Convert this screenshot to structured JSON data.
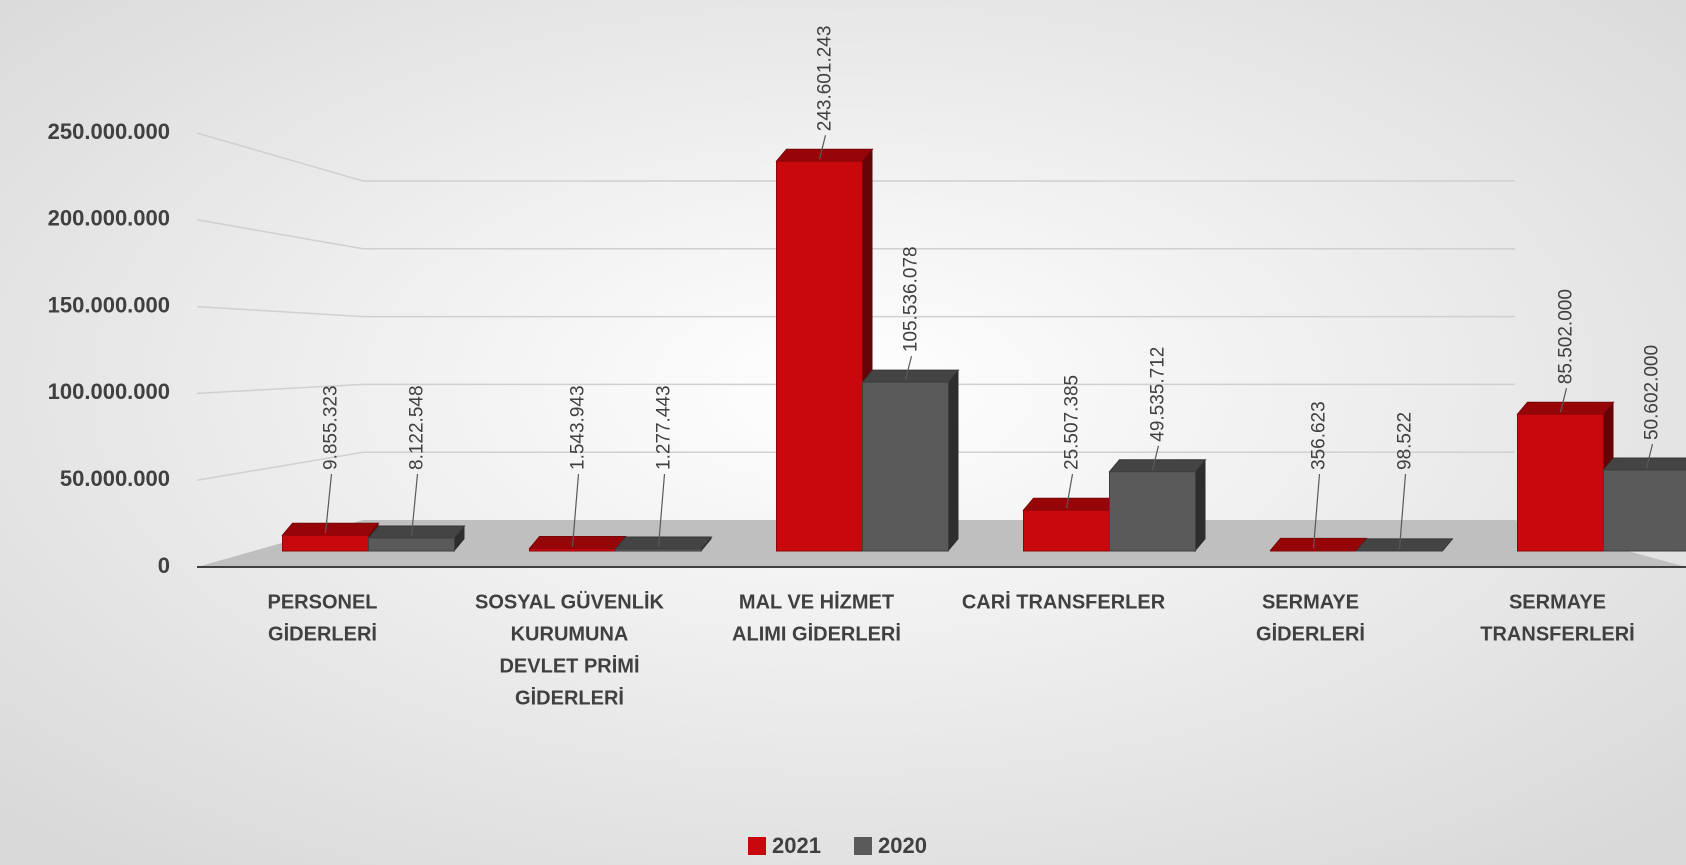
{
  "chart_data": {
    "type": "bar3d",
    "categories": [
      [
        "PERSONEL",
        "GİDERLERİ"
      ],
      [
        "SOSYAL GÜVENLİK",
        "KURUMUNA",
        "DEVLET PRİMİ",
        "GİDERLERİ"
      ],
      [
        "MAL VE HİZMET",
        "ALIMI GİDERLERİ"
      ],
      [
        "CARİ TRANSFERLER"
      ],
      [
        "SERMAYE",
        "GİDERLERİ"
      ],
      [
        "SERMAYE",
        "TRANSFERLERİ"
      ]
    ],
    "series": [
      {
        "name": "2021",
        "color": "#c8080c",
        "values": [
          9855323,
          1543943,
          243601243,
          25507385,
          356623,
          85502000
        ],
        "value_labels": [
          "9.855.323",
          "1.543.943",
          "243.601.243",
          "25.507.385",
          "356.623",
          "85.502.000"
        ]
      },
      {
        "name": "2020",
        "color": "#5a5a5a",
        "values": [
          8122548,
          1277443,
          105536078,
          49535712,
          98522,
          50602000
        ],
        "value_labels": [
          "8.122.548",
          "1.277.443",
          "105.536.078",
          "49.535.712",
          "98.522",
          "50.602.000"
        ]
      }
    ],
    "ylim": [
      0,
      250000000
    ],
    "yticks": [
      0,
      {
        "value": 50000000,
        "label": "50.000.000"
      },
      {
        "value": 100000000,
        "label": "100.000.000"
      },
      {
        "value": 150000000,
        "label": "150.000.000"
      },
      {
        "value": 200000000,
        "label": "200.000.000"
      },
      {
        "value": 250000000,
        "label": "250.000.000"
      }
    ],
    "grid": true,
    "legend": "bottom"
  }
}
